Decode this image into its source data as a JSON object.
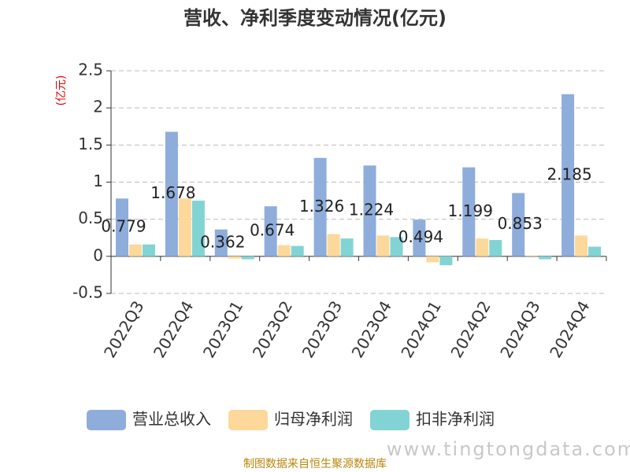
{
  "chart_data": {
    "type": "bar",
    "title": "营收、净利季度变动情况(亿元)",
    "y_label": "(亿元)",
    "categories": [
      "2022Q3",
      "2022Q4",
      "2023Q1",
      "2023Q2",
      "2023Q3",
      "2023Q4",
      "2024Q1",
      "2024Q2",
      "2024Q3",
      "2024Q4"
    ],
    "series": [
      {
        "name": "营业总收入",
        "color": "#8eaddb",
        "values": [
          0.779,
          1.678,
          0.362,
          0.674,
          1.326,
          1.224,
          0.494,
          1.199,
          0.853,
          2.185
        ],
        "show_labels": true
      },
      {
        "name": "归母净利润",
        "color": "#fdd89b",
        "values": [
          0.16,
          0.78,
          -0.03,
          0.15,
          0.3,
          0.28,
          -0.08,
          0.24,
          0.01,
          0.28
        ],
        "show_labels": false
      },
      {
        "name": "扣非净利润",
        "color": "#82d4d4",
        "values": [
          0.16,
          0.75,
          -0.04,
          0.14,
          0.24,
          0.26,
          -0.12,
          0.22,
          -0.04,
          0.13
        ],
        "show_labels": false
      }
    ],
    "ylim": [
      -0.5,
      2.5
    ],
    "yticks": [
      -0.5,
      0,
      0.5,
      1,
      1.5,
      2,
      2.5
    ],
    "grid": true,
    "source": "制图数据来自恒生聚源数据库",
    "watermark": "www.tingtongdata.com"
  }
}
